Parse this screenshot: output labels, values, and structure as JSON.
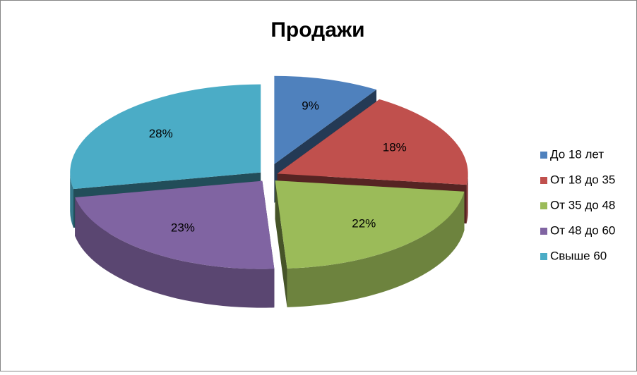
{
  "chart_data": {
    "type": "pie3d",
    "title": "Продажи",
    "categories": [
      "До 18 лет",
      "От 18 до 35",
      "От 35 до 48",
      "От 48 до 60",
      "Свыше 60"
    ],
    "values": [
      9,
      18,
      22,
      23,
      28
    ],
    "value_labels": [
      "9%",
      "18%",
      "22%",
      "23%",
      "28%"
    ],
    "colors": [
      "#4f81bd",
      "#c0504d",
      "#9bbb59",
      "#8064a2",
      "#4bacc6"
    ],
    "legend": "right"
  }
}
